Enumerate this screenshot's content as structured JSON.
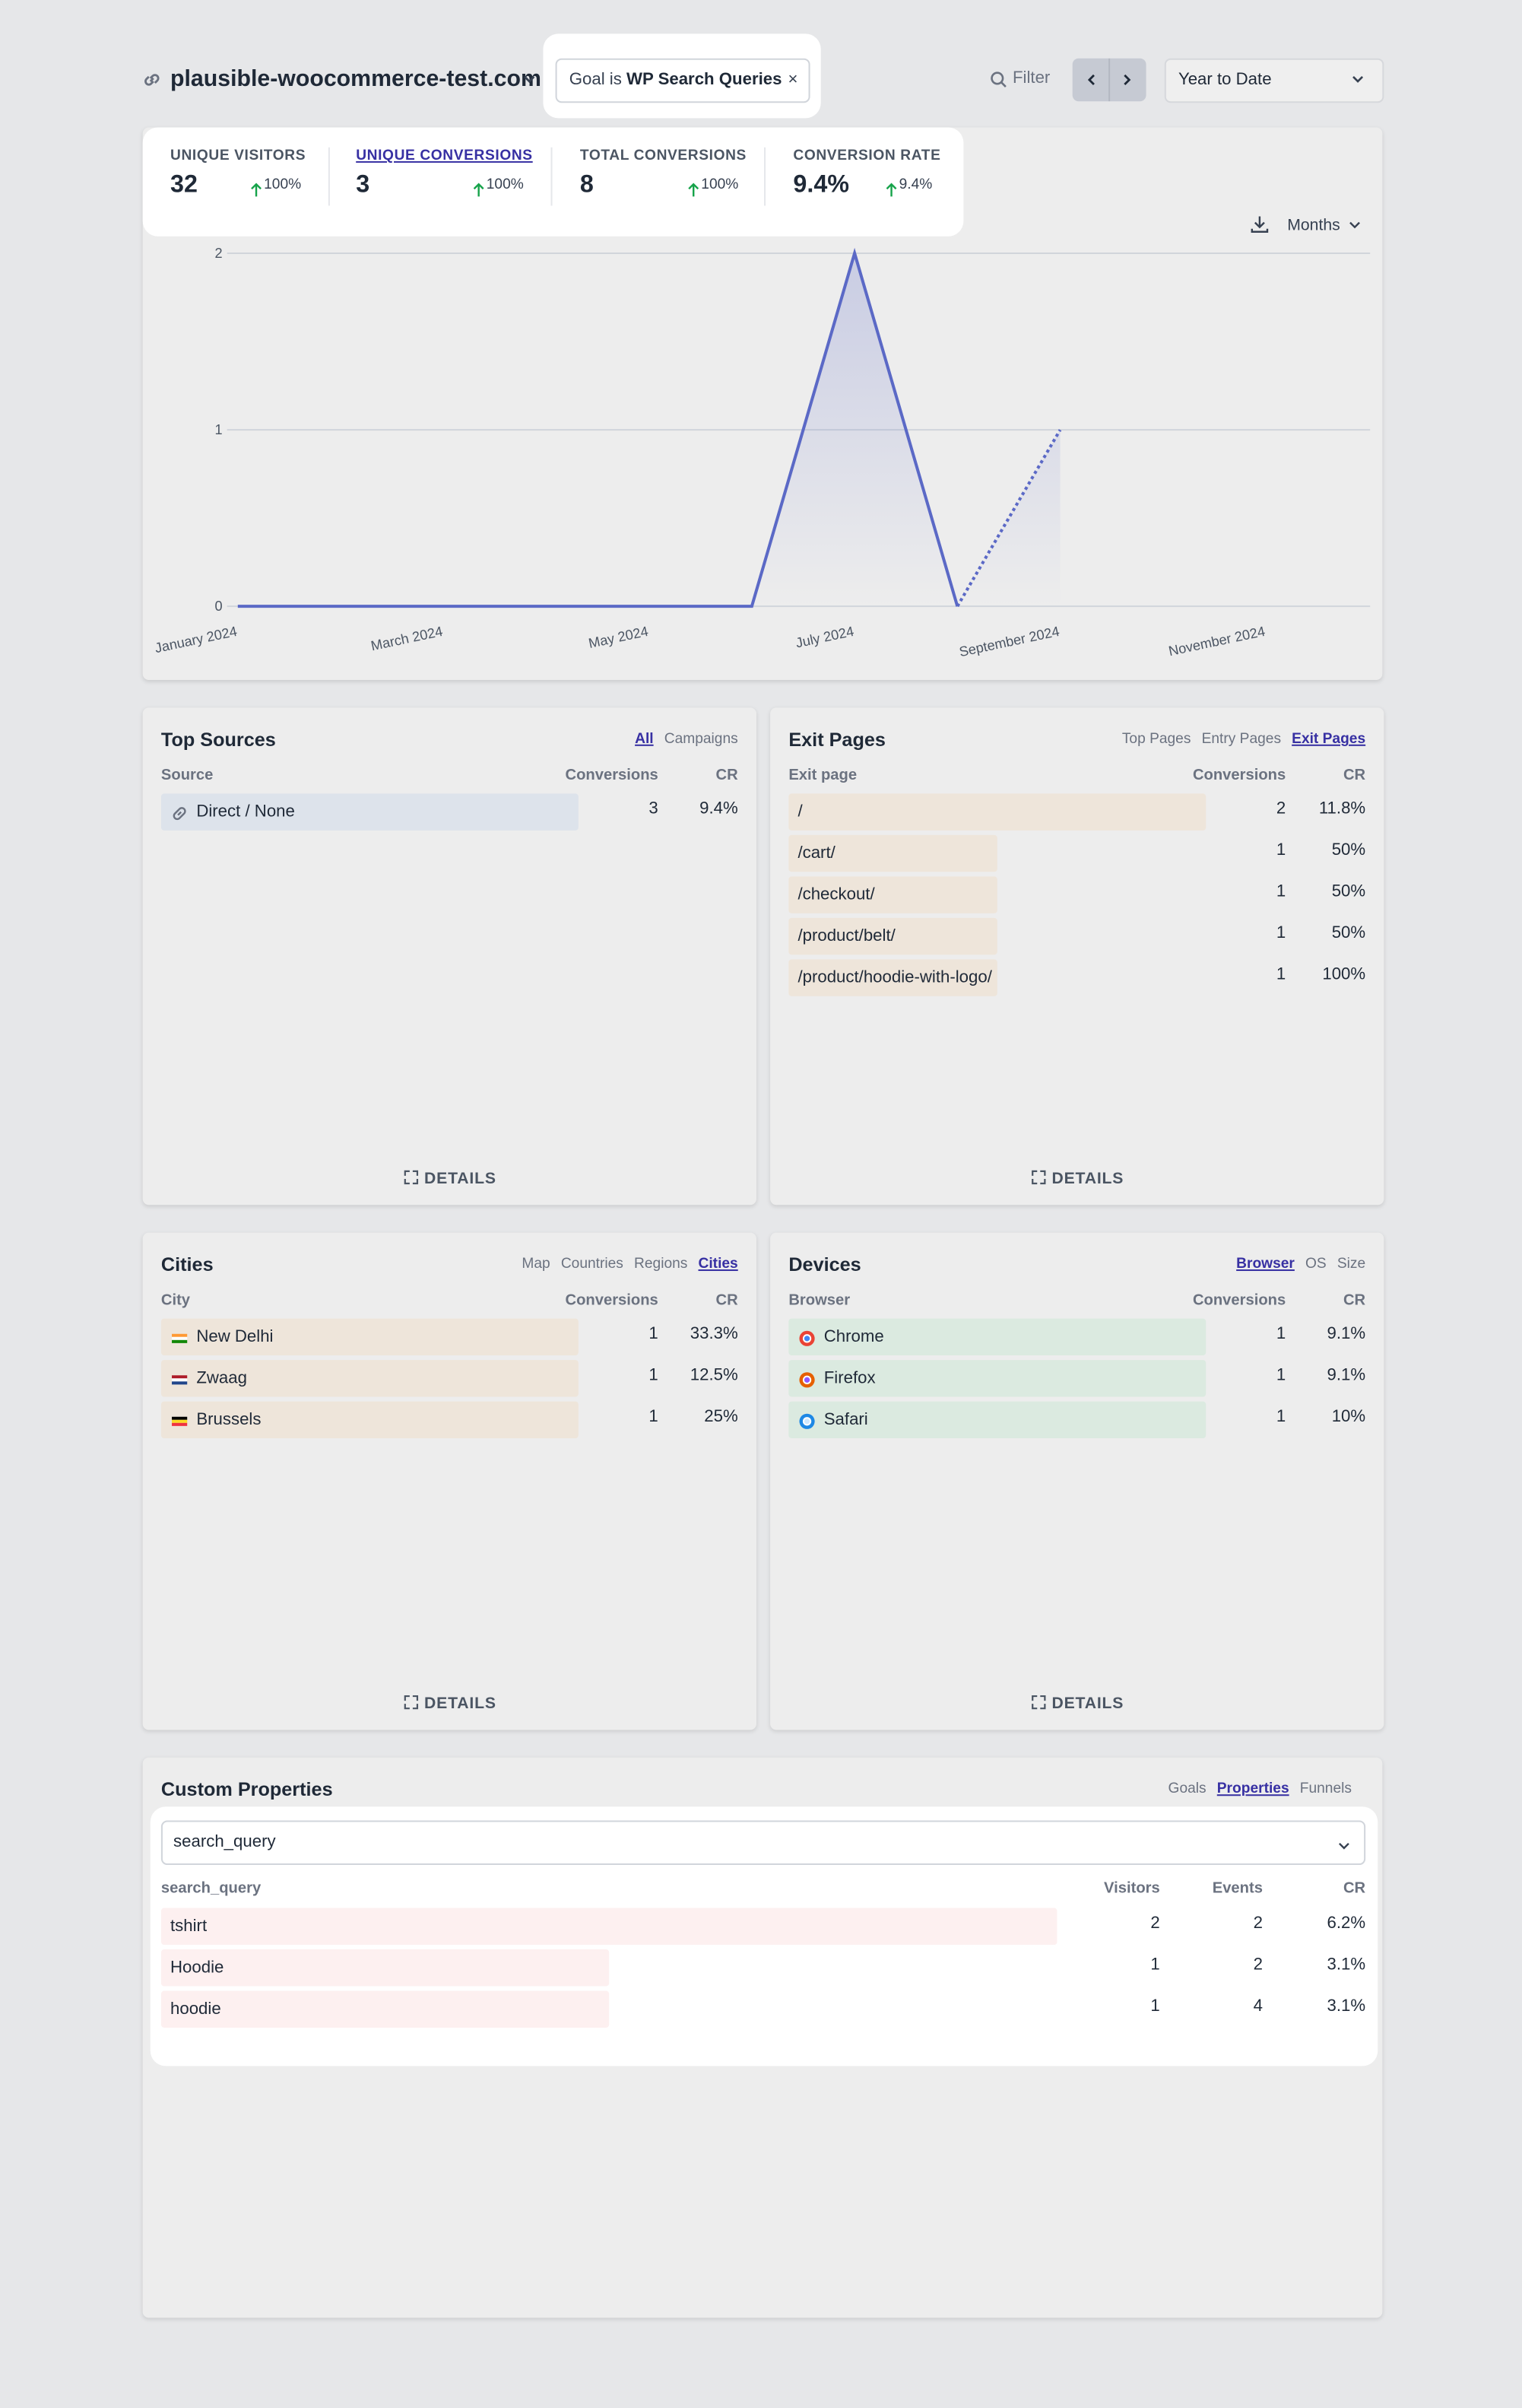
{
  "header": {
    "site": "plausible-woocommerce-test.com",
    "filter_prefix": "Goal is",
    "filter_value": "WP Search Queries",
    "filter_button": "Filter",
    "period": "Year to Date"
  },
  "metrics": [
    {
      "label": "UNIQUE VISITORS",
      "value": "32",
      "change": "100%"
    },
    {
      "label": "UNIQUE CONVERSIONS",
      "value": "3",
      "change": "100%"
    },
    {
      "label": "TOTAL CONVERSIONS",
      "value": "8",
      "change": "100%"
    },
    {
      "label": "CONVERSION RATE",
      "value": "9.4%",
      "change": "9.4%"
    }
  ],
  "active_metric": 1,
  "chart": {
    "type": "line",
    "interval": "Months",
    "color": "#5b69c6",
    "grid": true,
    "categories": [
      "January 2024",
      null,
      "March 2024",
      null,
      "May 2024",
      null,
      "July 2024",
      null,
      "September 2024",
      null,
      "November 2024",
      null
    ],
    "values": [
      0,
      0,
      0,
      0,
      0,
      0,
      2,
      0,
      1,
      null,
      null,
      null
    ],
    "ylim": [
      0,
      2
    ],
    "yticks": [
      0,
      1,
      2
    ]
  },
  "panels": [
    {
      "title": "Top Sources",
      "tabs": [
        "All",
        "Campaigns"
      ],
      "active_tab": 0,
      "columns": [
        "Source",
        "Conversions",
        "CR"
      ],
      "rows": [
        [
          "Direct / None",
          3,
          "9.4%"
        ]
      ],
      "details": "DETAILS",
      "bar_color": "#dde3eb"
    },
    {
      "title": "Exit Pages",
      "tabs": [
        "Top Pages",
        "Entry Pages",
        "Exit Pages"
      ],
      "active_tab": 2,
      "columns": [
        "Exit page",
        "Conversions",
        "CR"
      ],
      "rows": [
        [
          "/",
          2,
          "11.8%"
        ],
        [
          "/cart/",
          1,
          "50%"
        ],
        [
          "/checkout/",
          1,
          "50%"
        ],
        [
          "/product/belt/",
          1,
          "50%"
        ],
        [
          "/product/hoodie-with-logo/",
          1,
          "100%"
        ]
      ],
      "details": "DETAILS",
      "bar_color": "#eee5da"
    },
    {
      "title": "Cities",
      "tabs": [
        "Map",
        "Countries",
        "Regions",
        "Cities"
      ],
      "active_tab": 3,
      "columns": [
        "City",
        "Conversions",
        "CR"
      ],
      "rows": [
        [
          "New Delhi",
          1,
          "33.3%"
        ],
        [
          "Zwaag",
          1,
          "12.5%"
        ],
        [
          "Brussels",
          1,
          "25%"
        ]
      ],
      "details": "DETAILS",
      "bar_color": "#eee5da"
    },
    {
      "title": "Devices",
      "tabs": [
        "Browser",
        "OS",
        "Size"
      ],
      "active_tab": 0,
      "columns": [
        "Browser",
        "Conversions",
        "CR"
      ],
      "rows": [
        [
          "Chrome",
          1,
          "9.1%"
        ],
        [
          "Firefox",
          1,
          "9.1%"
        ],
        [
          "Safari",
          1,
          "10%"
        ]
      ],
      "details": "DETAILS",
      "bar_color": "#dbeae0"
    }
  ],
  "custom_properties": {
    "title": "Custom Properties",
    "tabs": [
      "Goals",
      "Properties",
      "Funnels"
    ],
    "active_tab": 1,
    "select": "search_query",
    "columns": [
      "search_query",
      "Visitors",
      "Events",
      "CR"
    ],
    "rows": [
      [
        "tshirt",
        2,
        2,
        "6.2%"
      ],
      [
        "Hoodie",
        1,
        2,
        "3.1%"
      ],
      [
        "hoodie",
        1,
        4,
        "3.1%"
      ]
    ],
    "bar_color": "#fdf0f0"
  }
}
